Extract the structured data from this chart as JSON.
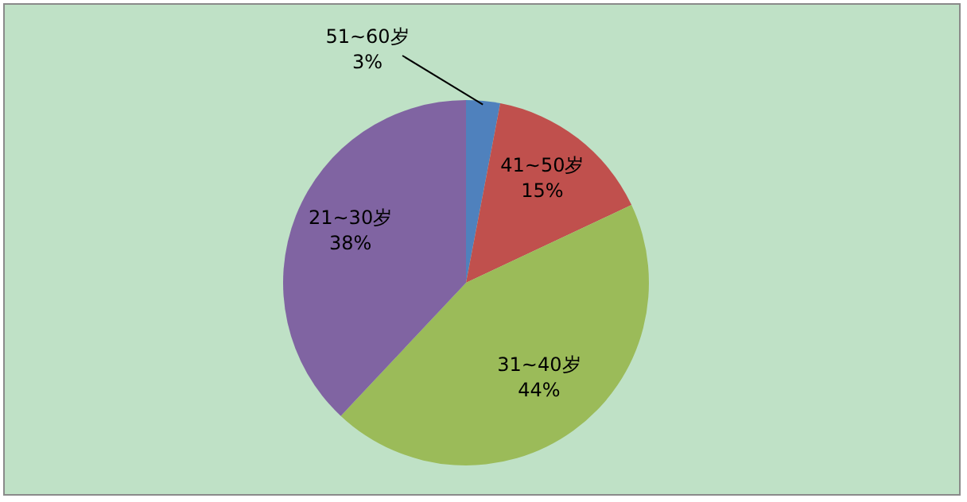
{
  "chart_data": {
    "type": "pie",
    "categories": [
      "51~60岁",
      "41~50岁",
      "31~40岁",
      "21~30岁"
    ],
    "values": [
      3,
      15,
      44,
      38
    ],
    "colors": [
      "#4f81bd",
      "#c0504d",
      "#9bbb59",
      "#8064a2"
    ],
    "value_labels": [
      "3%",
      "15%",
      "44%",
      "38%"
    ]
  }
}
